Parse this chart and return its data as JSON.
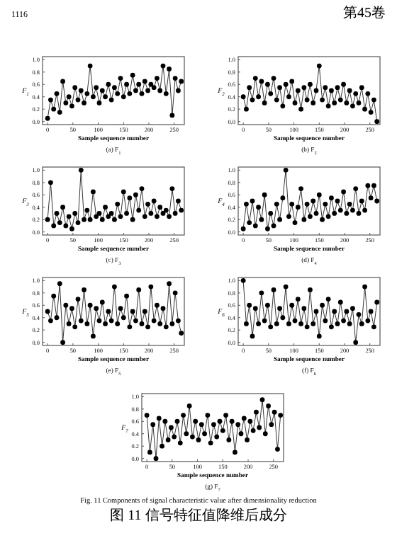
{
  "chart_data": [
    {
      "type": "line",
      "title": "(a) F$_{1}$",
      "xlabel": "Sample sequence number",
      "ylabel": "F$_{1}$",
      "annotations": [
        "1116",
        "第45卷"
      ],
      "color": "#000000",
      "marker": "circle",
      "xlim": [
        -10,
        270
      ],
      "ylim": [
        -0.05,
        1.05
      ],
      "xticks": [
        0,
        50,
        100,
        150,
        200,
        250
      ],
      "yticks": [
        {
          "value": 0,
          "label": "0.0"
        },
        {
          "value": 0.2,
          "label": "0.2"
        },
        {
          "value": 0.4,
          "label": "0.4"
        },
        {
          "value": 0.6,
          "label": "0.6"
        },
        {
          "value": 0.8,
          "label": "0.8"
        },
        {
          "value": 1,
          "label": "1.0"
        }
      ],
      "x": [
        0,
        6,
        12,
        18,
        24,
        30,
        36,
        42,
        48,
        54,
        60,
        66,
        72,
        78,
        84,
        90,
        96,
        102,
        108,
        114,
        120,
        126,
        132,
        138,
        144,
        150,
        156,
        162,
        168,
        174,
        180,
        186,
        192,
        198,
        204,
        210,
        216,
        222,
        228,
        234,
        240,
        246,
        252,
        258,
        264
      ],
      "values": [
        0.05,
        0.35,
        0.2,
        0.45,
        0.15,
        0.65,
        0.3,
        0.4,
        0.25,
        0.55,
        0.35,
        0.5,
        0.3,
        0.45,
        0.9,
        0.4,
        0.55,
        0.3,
        0.5,
        0.4,
        0.6,
        0.35,
        0.55,
        0.45,
        0.7,
        0.4,
        0.6,
        0.45,
        0.75,
        0.5,
        0.6,
        0.45,
        0.65,
        0.5,
        0.6,
        0.55,
        0.7,
        0.5,
        0.9,
        0.45,
        0.85,
        0.1,
        0.7,
        0.5,
        0.65
      ]
    },
    {
      "type": "line",
      "title": "(b) F$_{2}$",
      "xlabel": "Sample sequence number",
      "ylabel": "F$_{2}$",
      "color": "#000000",
      "marker": "circle",
      "xlim": [
        -10,
        270
      ],
      "ylim": [
        -0.05,
        1.05
      ],
      "xticks": [
        0,
        50,
        100,
        150,
        200,
        250
      ],
      "yticks": [
        {
          "value": 0,
          "label": "0.0"
        },
        {
          "value": 0.2,
          "label": "0.2"
        },
        {
          "value": 0.4,
          "label": "0.4"
        },
        {
          "value": 0.6,
          "label": "0.6"
        },
        {
          "value": 0.8,
          "label": "0.8"
        },
        {
          "value": 1,
          "label": "1.0"
        }
      ],
      "x": [
        0,
        6,
        12,
        18,
        24,
        30,
        36,
        42,
        48,
        54,
        60,
        66,
        72,
        78,
        84,
        90,
        96,
        102,
        108,
        114,
        120,
        126,
        132,
        138,
        144,
        150,
        156,
        162,
        168,
        174,
        180,
        186,
        192,
        198,
        204,
        210,
        216,
        222,
        228,
        234,
        240,
        246,
        252,
        258,
        264
      ],
      "values": [
        0.4,
        0.2,
        0.55,
        0.35,
        0.7,
        0.4,
        0.65,
        0.3,
        0.6,
        0.45,
        0.7,
        0.35,
        0.55,
        0.25,
        0.6,
        0.4,
        0.65,
        0.3,
        0.5,
        0.2,
        0.55,
        0.35,
        0.6,
        0.3,
        0.5,
        0.9,
        0.35,
        0.55,
        0.25,
        0.5,
        0.3,
        0.55,
        0.35,
        0.6,
        0.3,
        0.5,
        0.25,
        0.45,
        0.3,
        0.55,
        0.2,
        0.45,
        0.15,
        0.35,
        0.0
      ]
    },
    {
      "type": "line",
      "title": "(c) F$_{3}$",
      "xlabel": "Sample sequence number",
      "ylabel": "F$_{3}$",
      "color": "#000000",
      "marker": "circle",
      "xlim": [
        -10,
        270
      ],
      "ylim": [
        -0.05,
        1.05
      ],
      "xticks": [
        0,
        50,
        100,
        150,
        200,
        250
      ],
      "yticks": [
        {
          "value": 0,
          "label": "0.0"
        },
        {
          "value": 0.2,
          "label": "0.2"
        },
        {
          "value": 0.4,
          "label": "0.4"
        },
        {
          "value": 0.6,
          "label": "0.6"
        },
        {
          "value": 0.8,
          "label": "0.8"
        },
        {
          "value": 1,
          "label": "1.0"
        }
      ],
      "x": [
        0,
        6,
        12,
        18,
        24,
        30,
        36,
        42,
        48,
        54,
        60,
        66,
        72,
        78,
        84,
        90,
        96,
        102,
        108,
        114,
        120,
        126,
        132,
        138,
        144,
        150,
        156,
        162,
        168,
        174,
        180,
        186,
        192,
        198,
        204,
        210,
        216,
        222,
        228,
        234,
        240,
        246,
        252,
        258,
        264
      ],
      "values": [
        0.2,
        0.8,
        0.1,
        0.3,
        0.15,
        0.4,
        0.1,
        0.25,
        0.05,
        0.3,
        0.15,
        1.0,
        0.2,
        0.35,
        0.2,
        0.65,
        0.25,
        0.3,
        0.2,
        0.4,
        0.25,
        0.3,
        0.2,
        0.45,
        0.25,
        0.65,
        0.3,
        0.55,
        0.2,
        0.6,
        0.35,
        0.7,
        0.25,
        0.45,
        0.3,
        0.5,
        0.25,
        0.4,
        0.3,
        0.35,
        0.25,
        0.7,
        0.3,
        0.5,
        0.35
      ]
    },
    {
      "type": "line",
      "title": "(d) F$_{4}$",
      "xlabel": "Sample sequence number",
      "ylabel": "F$_{4}$",
      "color": "#000000",
      "marker": "circle",
      "xlim": [
        -10,
        270
      ],
      "ylim": [
        -0.05,
        1.05
      ],
      "xticks": [
        0,
        50,
        100,
        150,
        200,
        250
      ],
      "yticks": [
        {
          "value": 0,
          "label": "0.0"
        },
        {
          "value": 0.2,
          "label": "0.2"
        },
        {
          "value": 0.4,
          "label": "0.4"
        },
        {
          "value": 0.6,
          "label": "0.6"
        },
        {
          "value": 0.8,
          "label": "0.8"
        },
        {
          "value": 1,
          "label": "1.0"
        }
      ],
      "x": [
        0,
        6,
        12,
        18,
        24,
        30,
        36,
        42,
        48,
        54,
        60,
        66,
        72,
        78,
        84,
        90,
        96,
        102,
        108,
        114,
        120,
        126,
        132,
        138,
        144,
        150,
        156,
        162,
        168,
        174,
        180,
        186,
        192,
        198,
        204,
        210,
        216,
        222,
        228,
        234,
        240,
        246,
        252,
        258,
        264
      ],
      "values": [
        0.05,
        0.45,
        0.15,
        0.5,
        0.1,
        0.4,
        0.2,
        0.6,
        0.05,
        0.3,
        0.1,
        0.45,
        0.2,
        0.55,
        1.0,
        0.25,
        0.45,
        0.15,
        0.4,
        0.7,
        0.2,
        0.45,
        0.25,
        0.5,
        0.3,
        0.6,
        0.2,
        0.45,
        0.25,
        0.55,
        0.3,
        0.5,
        0.35,
        0.65,
        0.3,
        0.45,
        0.35,
        0.7,
        0.3,
        0.5,
        0.35,
        0.75,
        0.55,
        0.75,
        0.5
      ]
    },
    {
      "type": "line",
      "title": "(e) F$_{5}$",
      "xlabel": "Sample sequence number",
      "ylabel": "F$_{5}$",
      "color": "#000000",
      "marker": "circle",
      "xlim": [
        -10,
        270
      ],
      "ylim": [
        -0.05,
        1.05
      ],
      "xticks": [
        0,
        50,
        100,
        150,
        200,
        250
      ],
      "yticks": [
        {
          "value": 0,
          "label": "0.0"
        },
        {
          "value": 0.2,
          "label": "0.2"
        },
        {
          "value": 0.4,
          "label": "0.4"
        },
        {
          "value": 0.6,
          "label": "0.6"
        },
        {
          "value": 0.8,
          "label": "0.8"
        },
        {
          "value": 1,
          "label": "1.0"
        }
      ],
      "x": [
        0,
        6,
        12,
        18,
        24,
        30,
        36,
        42,
        48,
        54,
        60,
        66,
        72,
        78,
        84,
        90,
        96,
        102,
        108,
        114,
        120,
        126,
        132,
        138,
        144,
        150,
        156,
        162,
        168,
        174,
        180,
        186,
        192,
        198,
        204,
        210,
        216,
        222,
        228,
        234,
        240,
        246,
        252,
        258,
        264
      ],
      "values": [
        0.5,
        0.35,
        0.75,
        0.4,
        0.95,
        0.0,
        0.6,
        0.3,
        0.55,
        0.25,
        0.7,
        0.35,
        0.85,
        0.3,
        0.6,
        0.1,
        0.55,
        0.35,
        0.65,
        0.3,
        0.5,
        0.35,
        0.9,
        0.3,
        0.55,
        0.4,
        0.75,
        0.25,
        0.5,
        0.35,
        0.85,
        0.3,
        0.5,
        0.25,
        0.9,
        0.35,
        0.6,
        0.3,
        0.55,
        0.25,
        0.95,
        0.3,
        0.8,
        0.35,
        0.15
      ]
    },
    {
      "type": "line",
      "title": "(f) F$_{6}$",
      "xlabel": "Sample sequence number",
      "ylabel": "F$_{6}$",
      "color": "#000000",
      "marker": "circle",
      "xlim": [
        -10,
        270
      ],
      "ylim": [
        -0.05,
        1.05
      ],
      "xticks": [
        0,
        50,
        100,
        150,
        200,
        250
      ],
      "yticks": [
        {
          "value": 0,
          "label": "0.0"
        },
        {
          "value": 0.2,
          "label": "0.2"
        },
        {
          "value": 0.4,
          "label": "0.4"
        },
        {
          "value": 0.6,
          "label": "0.6"
        },
        {
          "value": 0.8,
          "label": "0.8"
        },
        {
          "value": 1,
          "label": "1.0"
        }
      ],
      "x": [
        0,
        6,
        12,
        18,
        24,
        30,
        36,
        42,
        48,
        54,
        60,
        66,
        72,
        78,
        84,
        90,
        96,
        102,
        108,
        114,
        120,
        126,
        132,
        138,
        144,
        150,
        156,
        162,
        168,
        174,
        180,
        186,
        192,
        198,
        204,
        210,
        216,
        222,
        228,
        234,
        240,
        246,
        252,
        258,
        264
      ],
      "values": [
        1.0,
        0.3,
        0.6,
        0.1,
        0.55,
        0.3,
        0.8,
        0.35,
        0.6,
        0.25,
        0.85,
        0.3,
        0.55,
        0.4,
        0.9,
        0.3,
        0.6,
        0.35,
        0.7,
        0.3,
        0.55,
        0.25,
        0.85,
        0.3,
        0.5,
        0.1,
        0.6,
        0.35,
        0.7,
        0.25,
        0.5,
        0.3,
        0.65,
        0.35,
        0.5,
        0.3,
        0.55,
        0.0,
        0.45,
        0.3,
        0.9,
        0.35,
        0.5,
        0.25,
        0.65
      ]
    },
    {
      "type": "line",
      "title": "(g) F$_{7}$",
      "xlabel": "Sample sequence number",
      "ylabel": "F$_{7}$",
      "annotations": [
        "Fig. 11   Components of signal characteristic value after dimensionality reduction",
        "图 11   信号特征值降维后成分"
      ],
      "color": "#000000",
      "marker": "circle",
      "xlim": [
        -10,
        270
      ],
      "ylim": [
        -0.05,
        1.05
      ],
      "xticks": [
        0,
        50,
        100,
        150,
        200,
        250
      ],
      "yticks": [
        {
          "value": 0,
          "label": "0.0"
        },
        {
          "value": 0.2,
          "label": "0.2"
        },
        {
          "value": 0.4,
          "label": "0.4"
        },
        {
          "value": 0.6,
          "label": "0.6"
        },
        {
          "value": 0.8,
          "label": "0.8"
        },
        {
          "value": 1,
          "label": "1.0"
        }
      ],
      "x": [
        0,
        6,
        12,
        18,
        24,
        30,
        36,
        42,
        48,
        54,
        60,
        66,
        72,
        78,
        84,
        90,
        96,
        102,
        108,
        114,
        120,
        126,
        132,
        138,
        144,
        150,
        156,
        162,
        168,
        174,
        180,
        186,
        192,
        198,
        204,
        210,
        216,
        222,
        228,
        234,
        240,
        246,
        252,
        258,
        264
      ],
      "values": [
        0.7,
        0.1,
        0.55,
        0.0,
        0.65,
        0.2,
        0.6,
        0.3,
        0.5,
        0.35,
        0.6,
        0.25,
        0.7,
        0.4,
        0.85,
        0.35,
        0.6,
        0.3,
        0.55,
        0.4,
        0.7,
        0.25,
        0.55,
        0.35,
        0.6,
        0.45,
        0.7,
        0.3,
        0.6,
        0.1,
        0.55,
        0.4,
        0.65,
        0.3,
        0.6,
        0.45,
        0.75,
        0.5,
        0.95,
        0.4,
        0.85,
        0.55,
        0.75,
        0.15,
        0.7
      ]
    }
  ]
}
